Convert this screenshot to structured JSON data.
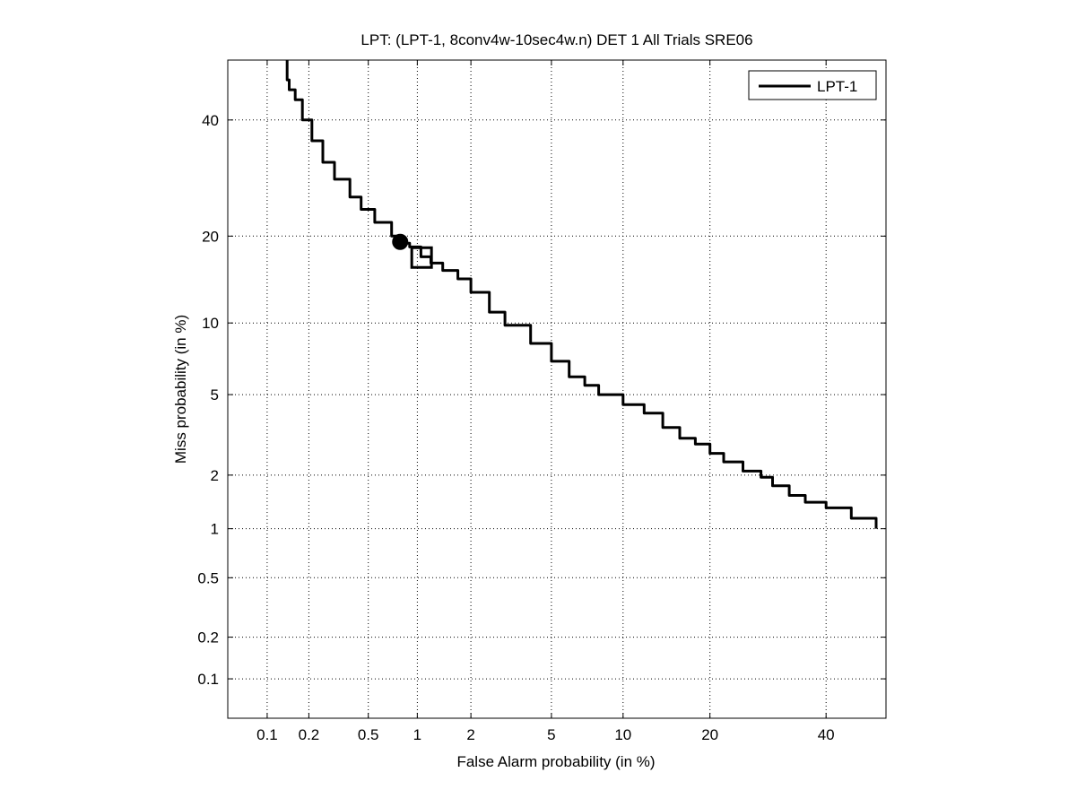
{
  "chart_data": {
    "type": "line",
    "title": "LPT: (LPT-1, 8conv4w-10sec4w.n) DET 1 All Trials SRE06",
    "xlabel": "False Alarm probability (in %)",
    "ylabel": "Miss probability (in %)",
    "x_scale": "probit",
    "y_scale": "probit",
    "xlim": [
      0.05,
      52
    ],
    "ylim": [
      0.05,
      52
    ],
    "x_ticks": [
      0.1,
      0.2,
      0.5,
      1,
      2,
      5,
      10,
      20,
      40
    ],
    "x_tick_labels": [
      "0.1",
      "0.2",
      "0.5",
      "1",
      "2",
      "5",
      "10",
      "20",
      "40"
    ],
    "y_ticks": [
      0.1,
      0.2,
      0.5,
      1,
      2,
      5,
      10,
      20,
      40
    ],
    "y_tick_labels": [
      "0.1",
      "0.2",
      "0.5",
      "1",
      "2",
      "5",
      "10",
      "20",
      "40"
    ],
    "grid": true,
    "legend_position": "top-right",
    "series": [
      {
        "name": "LPT-1",
        "color": "#000000",
        "x": [
          0.14,
          0.14,
          0.145,
          0.16,
          0.18,
          0.21,
          0.25,
          0.3,
          0.38,
          0.45,
          0.55,
          0.7,
          0.8,
          0.9,
          1.05,
          1.2,
          1.4,
          1.7,
          2.0,
          2.5,
          3.0,
          4.0,
          5.0,
          6.0,
          7.0,
          8.0,
          10.0,
          12.0,
          14.0,
          16.0,
          18.0,
          20.0,
          22.0,
          25.0,
          28.0,
          30.0,
          33.0,
          36.0,
          40.0,
          45.0,
          50.0
        ],
        "y": [
          52,
          48,
          46,
          44,
          40,
          36,
          32,
          29,
          26,
          24,
          22,
          20,
          19,
          18.5,
          17.2,
          16.4,
          15.5,
          14.5,
          13,
          11,
          9.8,
          8.3,
          7.0,
          6.0,
          5.5,
          5.0,
          4.5,
          4.1,
          3.5,
          3.1,
          2.9,
          2.6,
          2.35,
          2.1,
          1.95,
          1.75,
          1.55,
          1.42,
          1.32,
          1.15,
          1.0
        ]
      }
    ],
    "markers": [
      {
        "type": "circle",
        "filled": true,
        "x": 0.79,
        "y": 19.2
      },
      {
        "type": "square",
        "filled": false,
        "x": 1.06,
        "y": 17.1
      }
    ]
  }
}
